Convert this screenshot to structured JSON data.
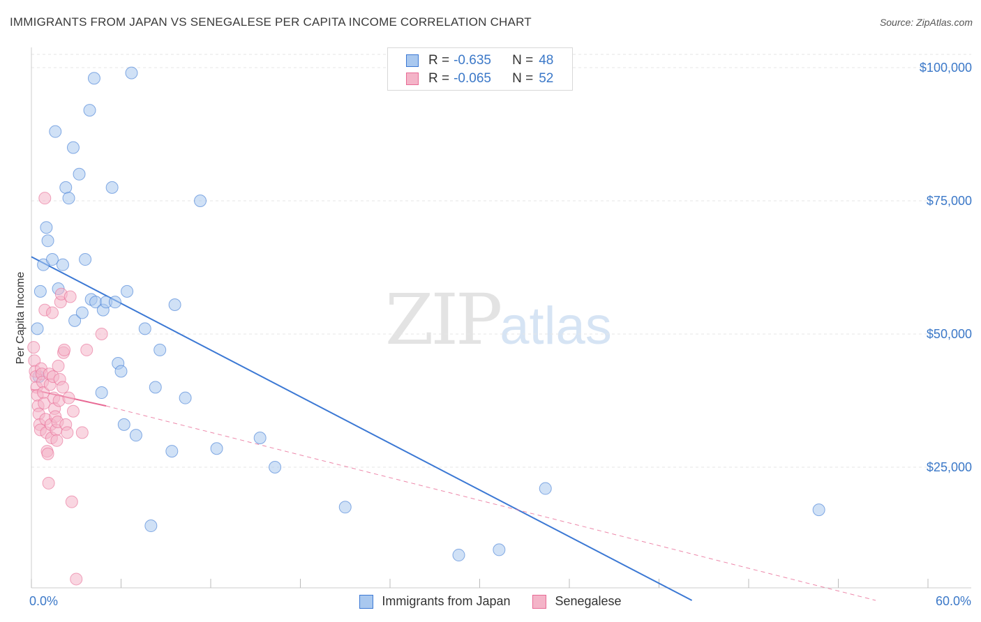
{
  "header": {
    "title": "IMMIGRANTS FROM JAPAN VS SENEGALESE PER CAPITA INCOME CORRELATION CHART",
    "source": "Source: ZipAtlas.com"
  },
  "watermark": {
    "zip": "ZIP",
    "atlas": "atlas"
  },
  "legend_top": {
    "rows": [
      {
        "r_label": "R =",
        "r_value": "-0.635",
        "n_label": "N =",
        "n_value": "48",
        "color": "#a9c8ef"
      },
      {
        "r_label": "R =",
        "r_value": "-0.065",
        "n_label": "N =",
        "n_value": "52",
        "color": "#f4b4c8"
      }
    ]
  },
  "legend_bottom": {
    "items": [
      {
        "label": "Immigrants from Japan",
        "color": "#a9c8ef"
      },
      {
        "label": "Senegalese",
        "color": "#f4b4c8"
      }
    ]
  },
  "x_axis": {
    "min_label": "0.0%",
    "max_label": "60.0%"
  },
  "chart_data": {
    "type": "scatter",
    "title": "IMMIGRANTS FROM JAPAN VS SENEGALESE PER CAPITA INCOME CORRELATION CHART",
    "xlabel": "",
    "ylabel": "Per Capita Income",
    "xlim": [
      0,
      60
    ],
    "ylim": [
      0,
      100000
    ],
    "y_ticks": [
      {
        "value": 25000,
        "label": "$25,000"
      },
      {
        "value": 50000,
        "label": "$50,000"
      },
      {
        "value": 75000,
        "label": "$75,000"
      },
      {
        "value": 100000,
        "label": "$100,000"
      }
    ],
    "series": [
      {
        "name": "Immigrants from Japan",
        "color": "#3b78d4",
        "fill": "#a9c8ef",
        "points": [
          [
            0.4,
            51000
          ],
          [
            0.5,
            42000
          ],
          [
            0.6,
            58000
          ],
          [
            0.8,
            63000
          ],
          [
            1.0,
            70000
          ],
          [
            1.1,
            67500
          ],
          [
            1.4,
            64000
          ],
          [
            1.6,
            88000
          ],
          [
            1.8,
            58500
          ],
          [
            2.1,
            63000
          ],
          [
            2.3,
            77500
          ],
          [
            2.5,
            75500
          ],
          [
            2.8,
            85000
          ],
          [
            2.9,
            52500
          ],
          [
            3.2,
            80000
          ],
          [
            3.4,
            54000
          ],
          [
            3.6,
            64000
          ],
          [
            3.9,
            92000
          ],
          [
            4.0,
            56500
          ],
          [
            4.2,
            98000
          ],
          [
            4.3,
            56000
          ],
          [
            4.7,
            39000
          ],
          [
            4.8,
            54500
          ],
          [
            5.0,
            56000
          ],
          [
            5.4,
            77500
          ],
          [
            5.6,
            56000
          ],
          [
            5.8,
            44500
          ],
          [
            6.0,
            43000
          ],
          [
            6.2,
            33000
          ],
          [
            6.4,
            58000
          ],
          [
            6.7,
            99000
          ],
          [
            7.0,
            31000
          ],
          [
            7.6,
            51000
          ],
          [
            8.0,
            14000
          ],
          [
            8.3,
            40000
          ],
          [
            8.6,
            47000
          ],
          [
            9.4,
            28000
          ],
          [
            9.6,
            55500
          ],
          [
            10.3,
            38000
          ],
          [
            11.3,
            75000
          ],
          [
            12.4,
            28500
          ],
          [
            15.3,
            30500
          ],
          [
            16.3,
            25000
          ],
          [
            21.0,
            17500
          ],
          [
            28.6,
            8500
          ],
          [
            31.3,
            9500
          ],
          [
            34.4,
            21000
          ],
          [
            52.7,
            17000
          ]
        ],
        "trend": {
          "x": [
            0,
            44.2
          ],
          "y": [
            64500,
            0
          ],
          "style": "solid"
        }
      },
      {
        "name": "Senegalese",
        "color": "#e86a95",
        "fill": "#f4b4c8",
        "points": [
          [
            0.15,
            47500
          ],
          [
            0.2,
            45000
          ],
          [
            0.25,
            43000
          ],
          [
            0.3,
            42000
          ],
          [
            0.35,
            40000
          ],
          [
            0.4,
            38500
          ],
          [
            0.45,
            36500
          ],
          [
            0.5,
            35000
          ],
          [
            0.55,
            33000
          ],
          [
            0.6,
            32000
          ],
          [
            0.65,
            43500
          ],
          [
            0.7,
            42500
          ],
          [
            0.75,
            41000
          ],
          [
            0.8,
            39000
          ],
          [
            0.85,
            37000
          ],
          [
            0.9,
            54500
          ],
          [
            0.95,
            34000
          ],
          [
            1.0,
            31500
          ],
          [
            1.05,
            28000
          ],
          [
            1.1,
            27500
          ],
          [
            1.15,
            22000
          ],
          [
            1.2,
            42500
          ],
          [
            1.25,
            40500
          ],
          [
            1.3,
            33000
          ],
          [
            1.35,
            30500
          ],
          [
            1.4,
            54000
          ],
          [
            1.45,
            42000
          ],
          [
            1.5,
            38000
          ],
          [
            1.55,
            36000
          ],
          [
            1.6,
            34500
          ],
          [
            1.65,
            32000
          ],
          [
            1.7,
            30000
          ],
          [
            1.75,
            33500
          ],
          [
            1.8,
            44000
          ],
          [
            1.85,
            37500
          ],
          [
            1.9,
            41500
          ],
          [
            1.95,
            56000
          ],
          [
            2.0,
            57500
          ],
          [
            2.1,
            40000
          ],
          [
            2.15,
            46500
          ],
          [
            2.2,
            47000
          ],
          [
            2.3,
            33000
          ],
          [
            2.4,
            31500
          ],
          [
            2.5,
            38000
          ],
          [
            2.6,
            57000
          ],
          [
            2.7,
            18500
          ],
          [
            2.8,
            35500
          ],
          [
            3.0,
            4000
          ],
          [
            3.4,
            31500
          ],
          [
            3.7,
            47000
          ],
          [
            4.7,
            50000
          ],
          [
            0.9,
            75500
          ]
        ],
        "trend": {
          "x": [
            0,
            5.0
          ],
          "y": [
            39600,
            36500
          ],
          "style": "solid",
          "extended": {
            "x": [
              5.0,
              56.5
            ],
            "y": [
              36500,
              0
            ],
            "style": "dashed"
          }
        }
      }
    ]
  }
}
